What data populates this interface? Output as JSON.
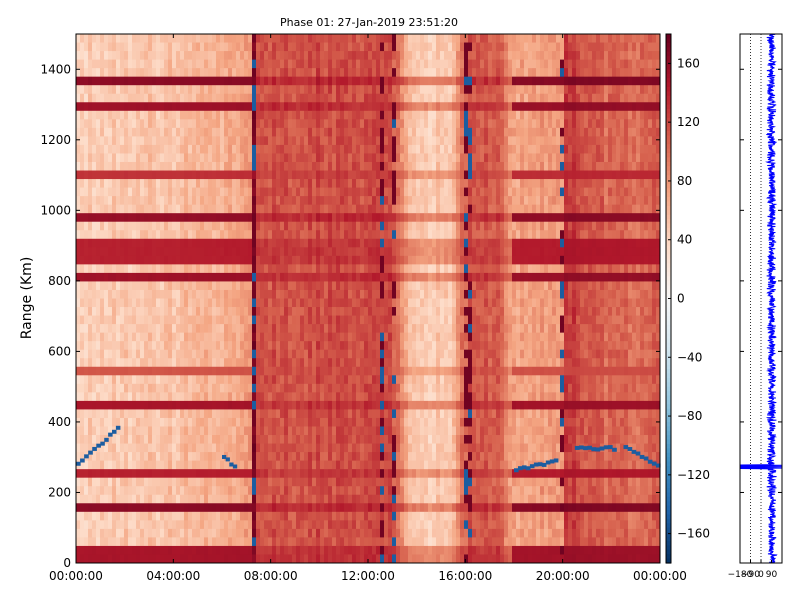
{
  "title": "Phase 01: 27-Jan-2019 23:51:20",
  "chart_data": [
    {
      "type": "heatmap",
      "title": "Phase 01: 27-Jan-2019 23:51:20",
      "xlabel": "",
      "ylabel": "Range (Km)",
      "x_axis": {
        "scale": "time",
        "range": [
          "00:00:00",
          "24:00:00"
        ],
        "tick_labels": [
          "00:00:00",
          "04:00:00",
          "08:00:00",
          "12:00:00",
          "16:00:00",
          "20:00:00",
          "00:00:00"
        ]
      },
      "y_axis": {
        "range": [
          0,
          1500
        ],
        "ticks": [
          0,
          200,
          400,
          600,
          800,
          1000,
          1200,
          1400
        ],
        "tick_labels": [
          "0",
          "200",
          "400",
          "600",
          "800",
          "1000",
          "1200",
          "1400"
        ]
      },
      "colorbar": {
        "colormap": "RdBu_r",
        "range": [
          -180,
          180
        ],
        "ticks": [
          160,
          120,
          80,
          40,
          0,
          -40,
          -80,
          -120,
          -160
        ],
        "tick_labels": [
          "160",
          "120",
          "80",
          "40",
          "0",
          "−40",
          "−80",
          "−120",
          "−160"
        ],
        "colors": {
          "low": "#053061",
          "mid": "#f7f7f7",
          "high": "#67001f"
        }
      },
      "time_profile_hours": [
        [
          0,
          45
        ],
        [
          3,
          50
        ],
        [
          6,
          62
        ],
        [
          7.2,
          80
        ],
        [
          7.3,
          180
        ],
        [
          7.45,
          115
        ],
        [
          10,
          118
        ],
        [
          12.8,
          120
        ],
        [
          13.3,
          90
        ],
        [
          14,
          40
        ],
        [
          15.6,
          55
        ],
        [
          15.8,
          100
        ],
        [
          16.5,
          118
        ],
        [
          17.3,
          110
        ],
        [
          18,
          70
        ],
        [
          20,
          82
        ],
        [
          20.05,
          130
        ],
        [
          22,
          100
        ],
        [
          24,
          105
        ]
      ],
      "row_bands_km": [
        {
          "range_km": 25,
          "value": 160
        },
        {
          "range_km": 160,
          "value": 175
        },
        {
          "range_km": 265,
          "value": 150
        },
        {
          "range_km": 455,
          "value": 160
        },
        {
          "range_km": 540,
          "value": 120
        },
        {
          "range_km": 800,
          "value": 165
        },
        {
          "range_km": 860,
          "value": 150
        },
        {
          "range_km": 895,
          "value": 150
        },
        {
          "range_km": 980,
          "value": 170
        },
        {
          "range_km": 1100,
          "value": 140
        },
        {
          "range_km": 1300,
          "value": 165
        },
        {
          "range_km": 1365,
          "value": 175
        }
      ],
      "vertical_features_hours": [
        7.3,
        12.6,
        13.0,
        16.0,
        16.2,
        20.0
      ],
      "trace_segments": [
        {
          "from_hour": 0,
          "to_hour": 1.0,
          "from_km": 285,
          "to_km": 340,
          "value": -150
        },
        {
          "from_hour": 1.0,
          "to_hour": 1.8,
          "from_km": 340,
          "to_km": 390,
          "value": -150
        },
        {
          "from_hour": 6.0,
          "to_hour": 6.6,
          "from_km": 300,
          "to_km": 265,
          "value": -150
        },
        {
          "from_hour": 18.0,
          "to_hour": 19.8,
          "from_km": 265,
          "to_km": 290,
          "value": -150
        },
        {
          "from_hour": 20.5,
          "to_hour": 22.2,
          "from_km": 325,
          "to_km": 325,
          "value": -150
        },
        {
          "from_hour": 22.5,
          "to_hour": 24.0,
          "from_km": 330,
          "to_km": 270,
          "value": -150
        }
      ]
    },
    {
      "type": "line",
      "title": "",
      "xlabel": "",
      "ylabel": "",
      "x_axis": {
        "range": [
          -180,
          180
        ],
        "tick_labels": [
          "−180",
          "−90",
          "0",
          "90"
        ]
      },
      "y_axis": {
        "range": [
          0,
          1500
        ]
      },
      "series_color": "#0000ff",
      "x_center": 90,
      "x_spread": 45,
      "excursion": {
        "range_km": [
          268,
          278
        ],
        "x_from": -180,
        "x_to": 180
      }
    }
  ]
}
